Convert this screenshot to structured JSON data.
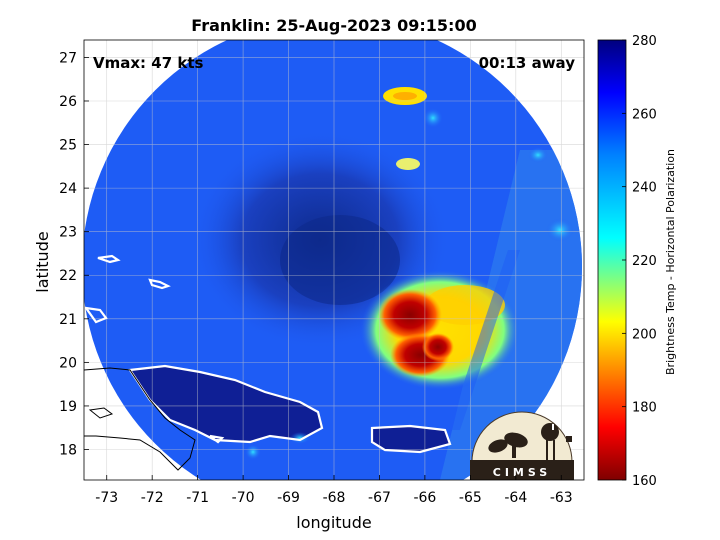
{
  "map": {
    "title": "Franklin: 25-Aug-2023 09:15:00",
    "vmax_text": "Vmax: 47 kts",
    "away_text": "00:13 away",
    "xlabel": "longitude",
    "ylabel": "latitude",
    "x_ticks": [
      "-73",
      "-72",
      "-71",
      "-70",
      "-69",
      "-68",
      "-67",
      "-66",
      "-65",
      "-64",
      "-63"
    ],
    "y_ticks": [
      "27",
      "26",
      "25",
      "24",
      "23",
      "22",
      "21",
      "20",
      "19",
      "18"
    ],
    "x_range": [
      -73.5,
      -62.5
    ],
    "y_range": [
      17.3,
      27.4
    ],
    "grid": true,
    "storm_center": {
      "lon": -67.7,
      "lat": 22.1
    },
    "deep_convection_center": {
      "lon": -66.3,
      "lat": 20.5
    }
  },
  "colorbar": {
    "label": "Brightness Temp - Horizontal Polarization",
    "ticks": [
      "280",
      "260",
      "240",
      "220",
      "200",
      "180",
      "160"
    ],
    "range": [
      160,
      280
    ],
    "colormap": "jet"
  },
  "logo": {
    "text": "CIMSS"
  },
  "colors": {
    "background": "#ffffff",
    "scan_blue": "#1e5cf5",
    "dark_blue": "#1232a0",
    "coastline": "#ffffff",
    "outside_coast": "#000000"
  }
}
